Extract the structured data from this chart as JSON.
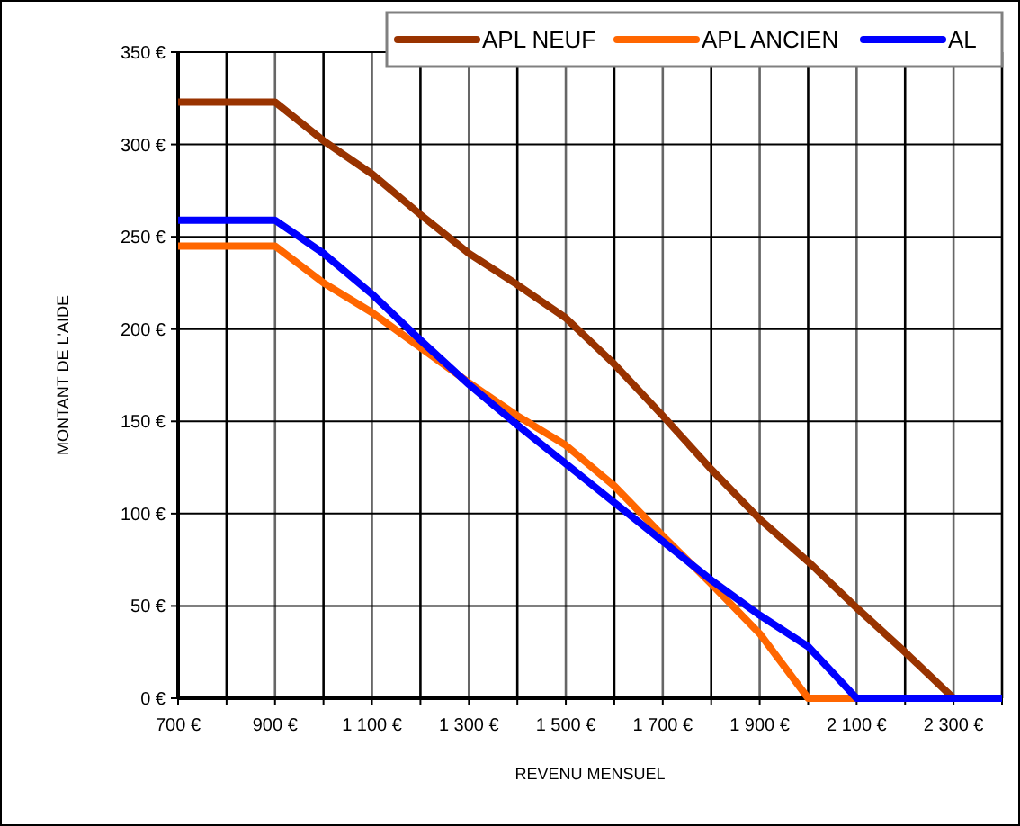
{
  "chart_data": {
    "type": "line",
    "xlabel": "REVENU MENSUEL",
    "ylabel": "MONTANT DE L'AIDE",
    "x": [
      700,
      800,
      900,
      1000,
      1100,
      1200,
      1300,
      1400,
      1500,
      1600,
      1700,
      1800,
      1900,
      2000,
      2100,
      2200,
      2300,
      2400
    ],
    "series": [
      {
        "name": "APL NEUF",
        "color": "#993300",
        "values": [
          323,
          323,
          323,
          302,
          284,
          262,
          241,
          224,
          206,
          181,
          153,
          124,
          97,
          74,
          49,
          25,
          0,
          0
        ]
      },
      {
        "name": "APL ANCIEN",
        "color": "#ff6600",
        "values": [
          245,
          245,
          245,
          225,
          209,
          190,
          171,
          153,
          137,
          115,
          88,
          62,
          35,
          0,
          0,
          null,
          null,
          null
        ]
      },
      {
        "name": "AL",
        "color": "#0000ff",
        "values": [
          259,
          259,
          259,
          241,
          219,
          194,
          170,
          148,
          127,
          106,
          85,
          64,
          45,
          28,
          0,
          0,
          0,
          0
        ]
      }
    ],
    "xlim": [
      700,
      2400
    ],
    "xticks": [
      {
        "value": 700,
        "label": "700 €"
      },
      {
        "value": 800,
        "label": null
      },
      {
        "value": 900,
        "label": "900 €"
      },
      {
        "value": 1000,
        "label": null
      },
      {
        "value": 1100,
        "label": "1 100 €"
      },
      {
        "value": 1200,
        "label": null
      },
      {
        "value": 1300,
        "label": "1 300 €"
      },
      {
        "value": 1400,
        "label": null
      },
      {
        "value": 1500,
        "label": "1 500 €"
      },
      {
        "value": 1600,
        "label": null
      },
      {
        "value": 1700,
        "label": "1 700 €"
      },
      {
        "value": 1800,
        "label": null
      },
      {
        "value": 1900,
        "label": "1 900 €"
      },
      {
        "value": 2000,
        "label": null
      },
      {
        "value": 2100,
        "label": "2 100 €"
      },
      {
        "value": 2200,
        "label": null
      },
      {
        "value": 2300,
        "label": "2 300 €"
      },
      {
        "value": 2400,
        "label": null
      }
    ],
    "ylim": [
      0,
      350
    ],
    "yticks": [
      {
        "value": 0,
        "label": "0 €"
      },
      {
        "value": 50,
        "label": "50 €"
      },
      {
        "value": 100,
        "label": "100 €"
      },
      {
        "value": 150,
        "label": "150 €"
      },
      {
        "value": 200,
        "label": "200 €"
      },
      {
        "value": 250,
        "label": "250 €"
      },
      {
        "value": 300,
        "label": "300 €"
      },
      {
        "value": 350,
        "label": "350 €"
      }
    ],
    "grid": true,
    "legend": "top right",
    "marker": "none",
    "line_style": "solid"
  }
}
